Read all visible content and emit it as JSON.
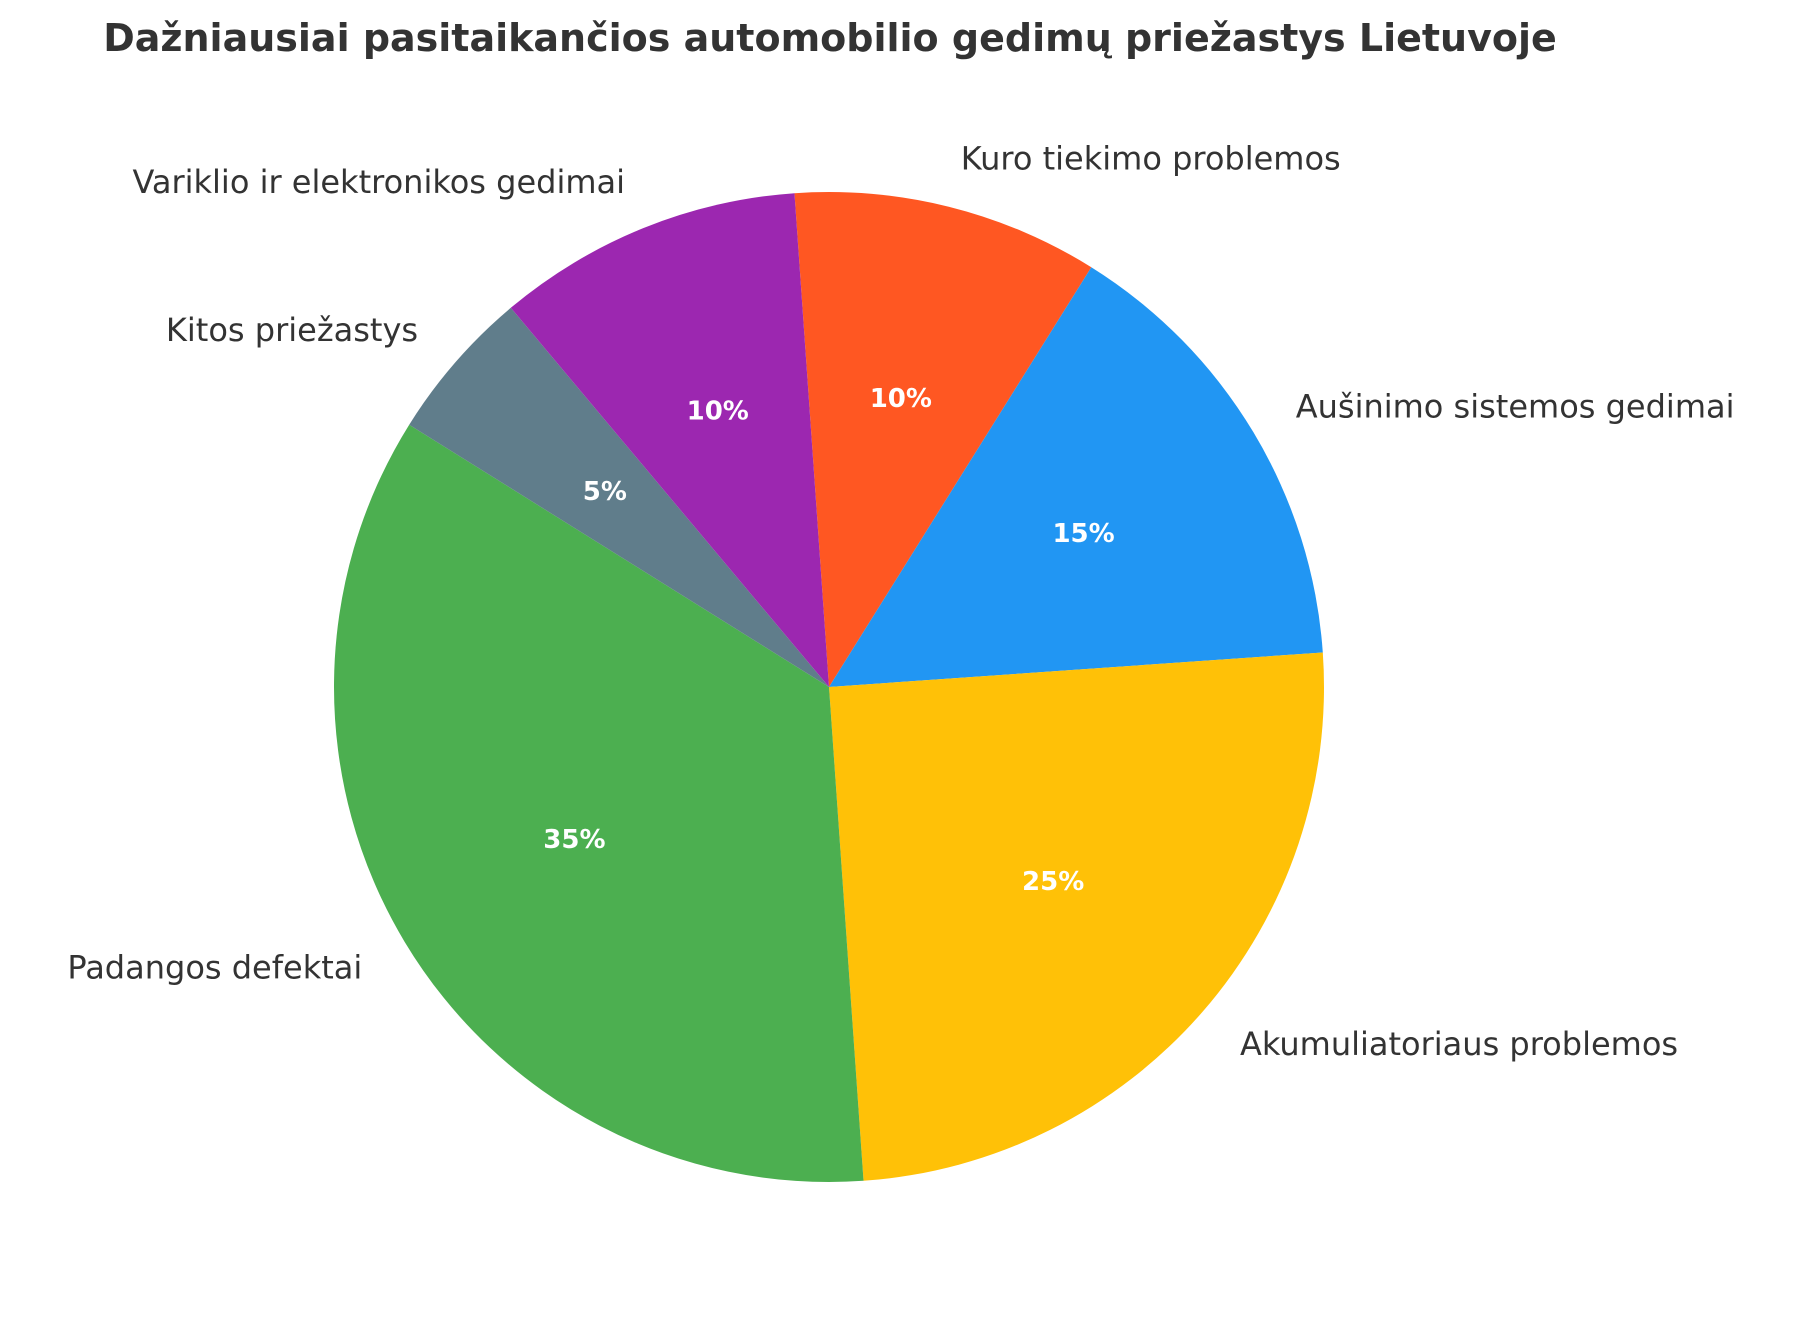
{
  "chart_data": {
    "type": "pie",
    "title": "Dažniausiai pasitaikančios automobilio gedimų priežastys Lietuvoje",
    "start_angle_deg": 94,
    "direction": "clockwise",
    "slices": [
      {
        "label": "Kuro tiekimo problemos",
        "value": 10,
        "pct_label": "10%",
        "color": "#FF5722"
      },
      {
        "label": "Aušinimo sistemos gedimai",
        "value": 15,
        "pct_label": "15%",
        "color": "#2196F3"
      },
      {
        "label": "Akumuliatoriaus problemos",
        "value": 25,
        "pct_label": "25%",
        "color": "#FFC107"
      },
      {
        "label": "Padangos defektai",
        "value": 35,
        "pct_label": "35%",
        "color": "#4CAF50"
      },
      {
        "label": "Kitos priežastys",
        "value": 5,
        "pct_label": "5%",
        "color": "#607D8B"
      },
      {
        "label": "Variklio ir elektronikos gedimai",
        "value": 10,
        "pct_label": "10%",
        "color": "#9C27B0"
      }
    ]
  }
}
